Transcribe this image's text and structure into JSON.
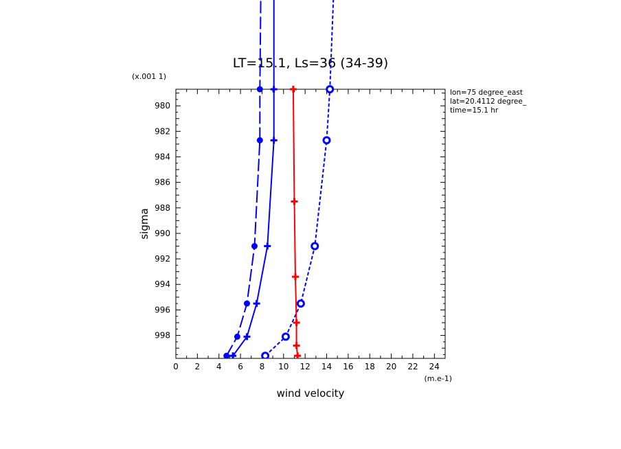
{
  "chart_data": {
    "type": "line",
    "title": "LT=15.1, Ls=36 (34-39)",
    "y_multiplier_label": "(x.001 1)",
    "xlabel": "wind velocity",
    "x_unit_label": "(m.e-1)",
    "ylabel": "sigma",
    "xlim": [
      0,
      25
    ],
    "ylim": [
      999.8,
      978.7
    ],
    "x_ticks": [
      0,
      2,
      4,
      6,
      8,
      10,
      12,
      14,
      16,
      18,
      20,
      22,
      24
    ],
    "y_ticks": [
      980,
      982,
      984,
      986,
      988,
      990,
      992,
      994,
      996,
      998
    ],
    "annotations": [
      "lon=75 degree_east",
      "lat=20.4112 degree_",
      "time=15.1 hr"
    ],
    "series": [
      {
        "style": "long-dash",
        "color": "#0000ff",
        "marker": "circle",
        "x": [
          4.7,
          5.7,
          6.6,
          7.3,
          7.8,
          7.8,
          7.9
        ],
        "y": [
          999.6,
          998.1,
          995.5,
          991.0,
          982.7,
          978.7,
          970.0
        ]
      },
      {
        "style": "solid",
        "color": "#0000ff",
        "marker": "plus",
        "x": [
          5.3,
          6.6,
          7.5,
          8.5,
          9.1,
          9.1,
          9.1
        ],
        "y": [
          999.6,
          998.1,
          995.5,
          991.0,
          982.7,
          978.7,
          970.0
        ]
      },
      {
        "style": "short-dash",
        "color": "#0000ff",
        "marker": "open-circle",
        "x": [
          8.3,
          10.2,
          11.6,
          12.9,
          14.0,
          14.3,
          14.7
        ],
        "y": [
          999.6,
          998.1,
          995.5,
          991.0,
          982.7,
          978.7,
          970.0
        ]
      },
      {
        "style": "solid",
        "color": "#ff0000",
        "marker": "plus",
        "x": [
          11.3,
          11.2,
          11.2,
          11.1,
          11.0,
          10.9
        ],
        "y": [
          999.6,
          998.8,
          997.0,
          993.4,
          987.5,
          978.7
        ]
      }
    ]
  }
}
